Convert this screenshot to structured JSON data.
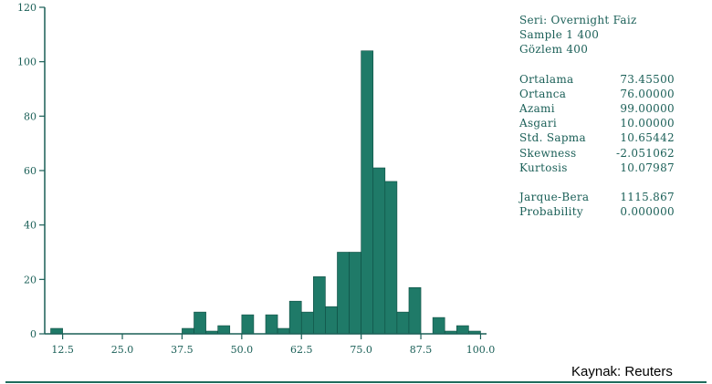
{
  "colors": {
    "bar": "#1f7a68",
    "bar_edge": "#0e4d42",
    "axis": "#1a5f57"
  },
  "chart_data": {
    "type": "bar",
    "x_ticks": [
      "12.5",
      "25.0",
      "37.5",
      "50.0",
      "62.5",
      "75.0",
      "87.5",
      "100.0"
    ],
    "y_ticks": [
      "0",
      "20",
      "40",
      "60",
      "80",
      "100",
      "120"
    ],
    "ylim": [
      0,
      120
    ],
    "xlim": [
      8.75,
      101.25
    ],
    "bin_width": 2.5,
    "bins": [
      {
        "x": 11.25,
        "v": 2
      },
      {
        "x": 13.75,
        "v": 0
      },
      {
        "x": 16.25,
        "v": 0
      },
      {
        "x": 18.75,
        "v": 0
      },
      {
        "x": 21.25,
        "v": 0
      },
      {
        "x": 23.75,
        "v": 0
      },
      {
        "x": 26.25,
        "v": 0
      },
      {
        "x": 28.75,
        "v": 0
      },
      {
        "x": 31.25,
        "v": 0
      },
      {
        "x": 33.75,
        "v": 0
      },
      {
        "x": 36.25,
        "v": 0
      },
      {
        "x": 38.75,
        "v": 2
      },
      {
        "x": 41.25,
        "v": 8
      },
      {
        "x": 43.75,
        "v": 1
      },
      {
        "x": 46.25,
        "v": 3
      },
      {
        "x": 48.75,
        "v": 0
      },
      {
        "x": 51.25,
        "v": 7
      },
      {
        "x": 53.75,
        "v": 0
      },
      {
        "x": 56.25,
        "v": 7
      },
      {
        "x": 58.75,
        "v": 2
      },
      {
        "x": 61.25,
        "v": 12
      },
      {
        "x": 63.75,
        "v": 8
      },
      {
        "x": 66.25,
        "v": 21
      },
      {
        "x": 68.75,
        "v": 10
      },
      {
        "x": 71.25,
        "v": 30
      },
      {
        "x": 73.75,
        "v": 30
      },
      {
        "x": 76.25,
        "v": 104
      },
      {
        "x": 78.75,
        "v": 61
      },
      {
        "x": 81.25,
        "v": 56
      },
      {
        "x": 83.75,
        "v": 8
      },
      {
        "x": 86.25,
        "v": 17
      },
      {
        "x": 88.75,
        "v": 0
      },
      {
        "x": 91.25,
        "v": 6
      },
      {
        "x": 93.75,
        "v": 1
      },
      {
        "x": 96.25,
        "v": 3
      },
      {
        "x": 98.75,
        "v": 1
      }
    ]
  },
  "stats": {
    "series": "Seri: Overnight Faiz",
    "sample": "Sample 1 400",
    "obs": "Gözlem 400",
    "rows": [
      {
        "label": "Ortalama",
        "value": "73.45500"
      },
      {
        "label": "Ortanca",
        "value": "76.00000"
      },
      {
        "label": "Azami",
        "value": "99.00000"
      },
      {
        "label": "Asgari",
        "value": "10.00000"
      },
      {
        "label": "Std. Sapma",
        "value": "10.65442"
      },
      {
        "label": "Skewness",
        "value": "-2.051062"
      },
      {
        "label": "Kurtosis",
        "value": "10.07987"
      }
    ],
    "rows2": [
      {
        "label": "Jarque-Bera",
        "value": "1115.867"
      },
      {
        "label": "Probability",
        "value": "0.000000"
      }
    ]
  },
  "source": "Kaynak: Reuters"
}
